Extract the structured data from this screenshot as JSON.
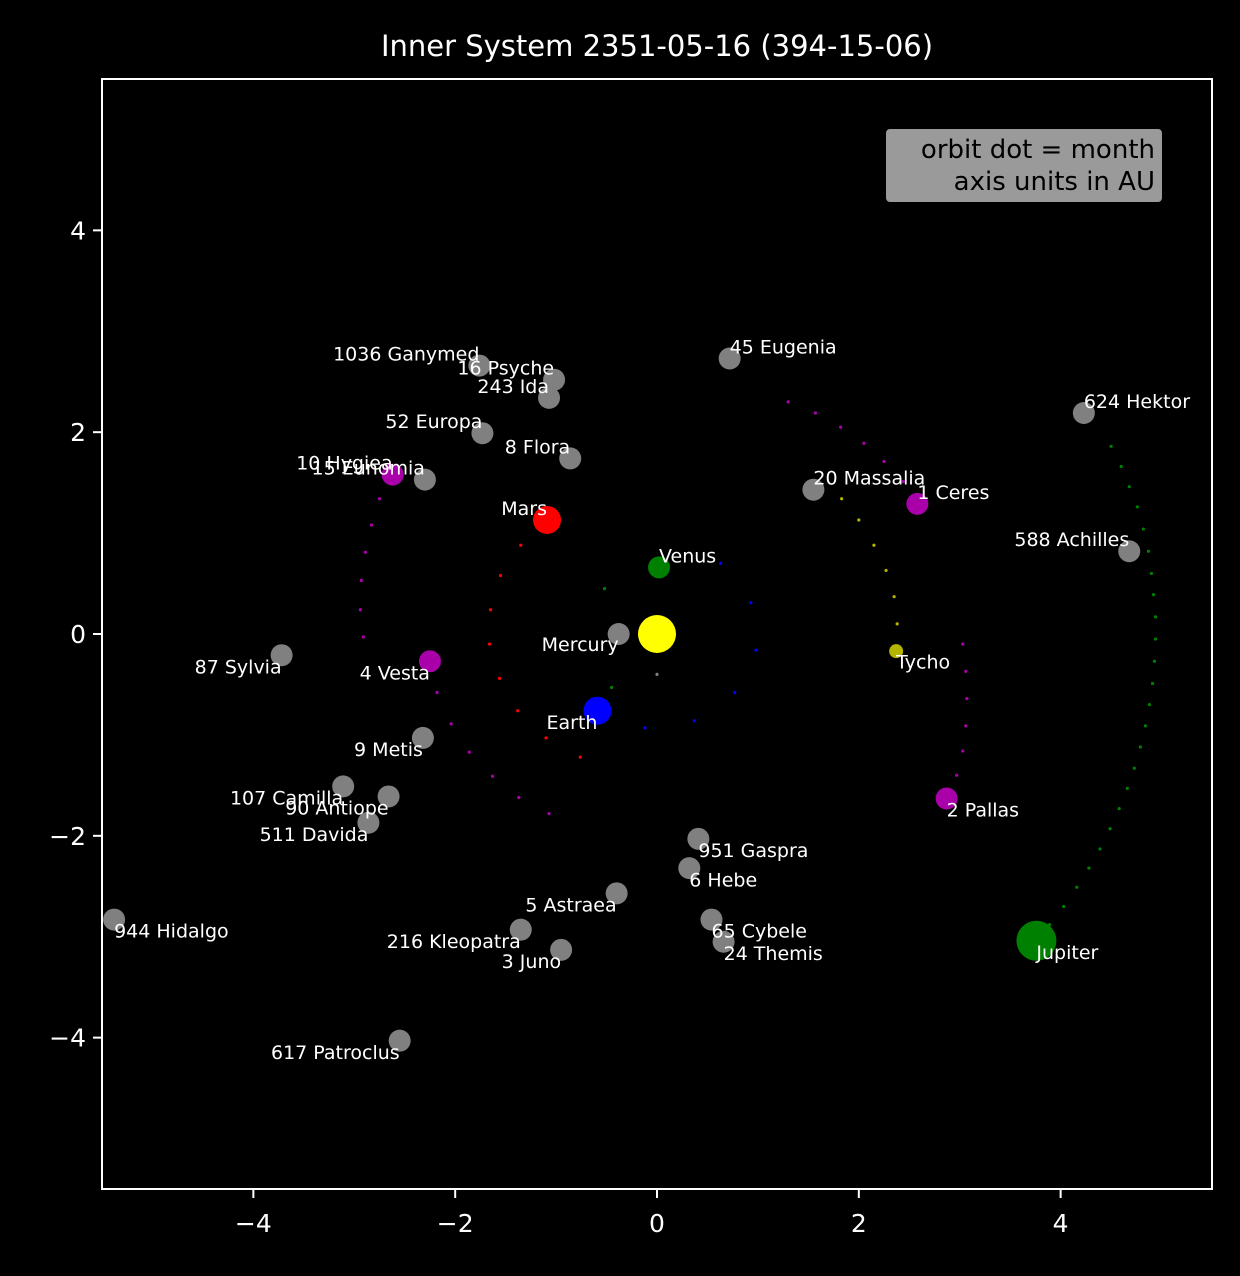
{
  "chart_data": {
    "type": "scatter",
    "title": "Inner System 2351-05-16 (394-15-06)",
    "xlabel": "",
    "ylabel": "",
    "xlim": [
      -5.5,
      5.5
    ],
    "ylim": [
      -5.5,
      5.5
    ],
    "xticks": [
      -4,
      -2,
      0,
      2,
      4
    ],
    "yticks": [
      -4,
      -2,
      0,
      2,
      4
    ],
    "xtick_labels": [
      "−4",
      "−2",
      "0",
      "2",
      "4"
    ],
    "ytick_labels": [
      "−4",
      "−2",
      "0",
      "2",
      "4"
    ],
    "grid": false,
    "legend_box": {
      "placement": "top-right",
      "lines": [
        "orbit dot = month",
        "axis units in AU"
      ]
    },
    "sun": {
      "x": 0,
      "y": 0,
      "color": "#ffff00"
    },
    "bodies": [
      {
        "name": "Mercury",
        "x": -0.38,
        "y": 0.0,
        "color": "#808080",
        "size": "medium",
        "label_anchor": "end",
        "label_dx": 0.0,
        "label_dy": -0.17
      },
      {
        "name": "Venus",
        "x": 0.02,
        "y": 0.66,
        "color": "#008000",
        "size": "medium",
        "label_anchor": "start",
        "label_dx": 0.0,
        "label_dy": 0.05
      },
      {
        "name": "Earth",
        "x": -0.59,
        "y": -0.76,
        "color": "#0000ff",
        "size": "large",
        "label_anchor": "end",
        "label_dx": 0.0,
        "label_dy": -0.18
      },
      {
        "name": "Mars",
        "x": -1.09,
        "y": 1.13,
        "color": "#ff0000",
        "size": "large",
        "label_anchor": "end",
        "label_dx": 0.0,
        "label_dy": 0.05
      },
      {
        "name": "Jupiter",
        "x": 3.76,
        "y": -3.04,
        "color": "#008000",
        "size": "xlarge",
        "label_anchor": "start",
        "label_dx": 0.0,
        "label_dy": -0.18
      },
      {
        "name": "Tycho",
        "x": 2.37,
        "y": -0.17,
        "color": "#b5b500",
        "size": "small",
        "label_anchor": "start",
        "label_dx": 0.0,
        "label_dy": -0.17
      },
      {
        "name": "1 Ceres",
        "x": 2.58,
        "y": 1.29,
        "color": "#aa00aa",
        "size": "medium",
        "label_anchor": "start",
        "label_dx": 0.0,
        "label_dy": 0.05
      },
      {
        "name": "2 Pallas",
        "x": 2.87,
        "y": -1.63,
        "color": "#aa00aa",
        "size": "medium",
        "label_anchor": "start",
        "label_dx": 0.0,
        "label_dy": -0.18
      },
      {
        "name": "4 Vesta",
        "x": -2.25,
        "y": -0.27,
        "color": "#aa00aa",
        "size": "medium",
        "label_anchor": "end",
        "label_dx": 0.0,
        "label_dy": -0.18
      },
      {
        "name": "10 Hygiea",
        "x": -2.62,
        "y": 1.58,
        "color": "#aa00aa",
        "size": "medium",
        "label_anchor": "end",
        "label_dx": 0.0,
        "label_dy": 0.05
      },
      {
        "name": "15 Eunomia",
        "x": -2.3,
        "y": 1.53,
        "color": "#808080",
        "size": "medium",
        "label_anchor": "end",
        "label_dx": 0.0,
        "label_dy": 0.05
      },
      {
        "name": "1036 Ganymed",
        "x": -1.76,
        "y": 2.66,
        "color": "#808080",
        "size": "medium",
        "label_anchor": "end",
        "label_dx": 0.0,
        "label_dy": 0.05
      },
      {
        "name": "16 Psyche",
        "x": -1.02,
        "y": 2.52,
        "color": "#808080",
        "size": "medium",
        "label_anchor": "end",
        "label_dx": 0.0,
        "label_dy": 0.05
      },
      {
        "name": "243 Ida",
        "x": -1.07,
        "y": 2.34,
        "color": "#808080",
        "size": "medium",
        "label_anchor": "end",
        "label_dx": 0.0,
        "label_dy": 0.05
      },
      {
        "name": "52 Europa",
        "x": -1.73,
        "y": 1.99,
        "color": "#808080",
        "size": "medium",
        "label_anchor": "end",
        "label_dx": 0.0,
        "label_dy": 0.05
      },
      {
        "name": "8 Flora",
        "x": -0.86,
        "y": 1.74,
        "color": "#808080",
        "size": "medium",
        "label_anchor": "end",
        "label_dx": 0.0,
        "label_dy": 0.05
      },
      {
        "name": "45 Eugenia",
        "x": 0.72,
        "y": 2.73,
        "color": "#808080",
        "size": "medium",
        "label_anchor": "start",
        "label_dx": 0.0,
        "label_dy": 0.05
      },
      {
        "name": "624 Hektor",
        "x": 4.23,
        "y": 2.19,
        "color": "#808080",
        "size": "medium",
        "label_anchor": "start",
        "label_dx": 0.0,
        "label_dy": 0.05
      },
      {
        "name": "20 Massalia",
        "x": 1.55,
        "y": 1.43,
        "color": "#808080",
        "size": "medium",
        "label_anchor": "start",
        "label_dx": 0.0,
        "label_dy": 0.05
      },
      {
        "name": "588 Achilles",
        "x": 4.68,
        "y": 0.82,
        "color": "#808080",
        "size": "medium",
        "label_anchor": "end",
        "label_dx": 0.0,
        "label_dy": 0.05
      },
      {
        "name": "87 Sylvia",
        "x": -3.72,
        "y": -0.21,
        "color": "#808080",
        "size": "medium",
        "label_anchor": "end",
        "label_dx": 0.0,
        "label_dy": -0.18
      },
      {
        "name": "9 Metis",
        "x": -2.32,
        "y": -1.03,
        "color": "#808080",
        "size": "medium",
        "label_anchor": "end",
        "label_dx": 0.0,
        "label_dy": -0.18
      },
      {
        "name": "107 Camilla",
        "x": -3.11,
        "y": -1.51,
        "color": "#808080",
        "size": "medium",
        "label_anchor": "end",
        "label_dx": 0.0,
        "label_dy": -0.18
      },
      {
        "name": "90 Antiope",
        "x": -2.66,
        "y": -1.61,
        "color": "#808080",
        "size": "medium",
        "label_anchor": "end",
        "label_dx": 0.0,
        "label_dy": -0.18
      },
      {
        "name": "511 Davida",
        "x": -2.86,
        "y": -1.87,
        "color": "#808080",
        "size": "medium",
        "label_anchor": "end",
        "label_dx": 0.0,
        "label_dy": -0.18
      },
      {
        "name": "951 Gaspra",
        "x": 0.41,
        "y": -2.03,
        "color": "#808080",
        "size": "medium",
        "label_anchor": "start",
        "label_dx": 0.0,
        "label_dy": -0.18
      },
      {
        "name": "6 Hebe",
        "x": 0.32,
        "y": -2.32,
        "color": "#808080",
        "size": "medium",
        "label_anchor": "start",
        "label_dx": 0.0,
        "label_dy": -0.18
      },
      {
        "name": "5 Astraea",
        "x": -0.4,
        "y": -2.57,
        "color": "#808080",
        "size": "medium",
        "label_anchor": "end",
        "label_dx": 0.0,
        "label_dy": -0.18
      },
      {
        "name": "65 Cybele",
        "x": 0.54,
        "y": -2.83,
        "color": "#808080",
        "size": "medium",
        "label_anchor": "start",
        "label_dx": 0.0,
        "label_dy": -0.18
      },
      {
        "name": "24 Themis",
        "x": 0.66,
        "y": -3.05,
        "color": "#808080",
        "size": "medium",
        "label_anchor": "start",
        "label_dx": 0.0,
        "label_dy": -0.18
      },
      {
        "name": "216 Kleopatra",
        "x": -1.35,
        "y": -2.93,
        "color": "#808080",
        "size": "medium",
        "label_anchor": "end",
        "label_dx": 0.0,
        "label_dy": -0.18
      },
      {
        "name": "3 Juno",
        "x": -0.95,
        "y": -3.13,
        "color": "#808080",
        "size": "medium",
        "label_anchor": "end",
        "label_dx": 0.0,
        "label_dy": -0.18
      },
      {
        "name": "944 Hidalgo",
        "x": -5.38,
        "y": -2.83,
        "color": "#808080",
        "size": "medium",
        "label_anchor": "start",
        "label_dx": 0.0,
        "label_dy": -0.18
      },
      {
        "name": "617 Patroclus",
        "x": -2.55,
        "y": -4.03,
        "color": "#808080",
        "size": "medium",
        "label_anchor": "end",
        "label_dx": 0.0,
        "label_dy": -0.18
      }
    ],
    "orbits": [
      {
        "color": "#808080",
        "points": [
          [
            0.0,
            -0.4
          ]
        ]
      },
      {
        "color": "#008000",
        "points": [
          [
            -0.52,
            0.45
          ],
          [
            -0.45,
            -0.53
          ]
        ]
      },
      {
        "color": "#0000ff",
        "points": [
          [
            0.63,
            0.7
          ],
          [
            0.93,
            0.31
          ],
          [
            0.98,
            -0.16
          ],
          [
            0.77,
            -0.58
          ],
          [
            0.37,
            -0.86
          ],
          [
            -0.12,
            -0.93
          ]
        ]
      },
      {
        "color": "#ff0000",
        "points": [
          [
            -1.35,
            0.88
          ],
          [
            -1.55,
            0.58
          ],
          [
            -1.65,
            0.24
          ],
          [
            -1.66,
            -0.1
          ],
          [
            -1.56,
            -0.44
          ],
          [
            -1.38,
            -0.76
          ],
          [
            -1.1,
            -1.03
          ],
          [
            -0.76,
            -1.22
          ]
        ]
      },
      {
        "color": "#aa00aa",
        "points": [
          [
            -2.75,
            1.34
          ],
          [
            -2.83,
            1.08
          ],
          [
            -2.89,
            0.81
          ],
          [
            -2.93,
            0.53
          ],
          [
            -2.94,
            0.24
          ],
          [
            -2.91,
            -0.03
          ]
        ]
      },
      {
        "color": "#aa00aa",
        "points": [
          [
            -2.18,
            -0.58
          ],
          [
            -2.04,
            -0.89
          ],
          [
            -1.86,
            -1.17
          ],
          [
            -1.63,
            -1.41
          ],
          [
            -1.37,
            -1.62
          ],
          [
            -1.07,
            -1.78
          ]
        ]
      },
      {
        "color": "#aa00aa",
        "points": [
          [
            1.3,
            2.3
          ],
          [
            1.57,
            2.19
          ],
          [
            1.82,
            2.05
          ],
          [
            2.05,
            1.89
          ],
          [
            2.25,
            1.71
          ],
          [
            2.44,
            1.51
          ]
        ]
      },
      {
        "color": "#aa00aa",
        "points": [
          [
            3.03,
            -0.1
          ],
          [
            3.06,
            -0.37
          ],
          [
            3.07,
            -0.64
          ],
          [
            3.06,
            -0.91
          ],
          [
            3.03,
            -1.16
          ],
          [
            2.97,
            -1.4
          ]
        ]
      },
      {
        "color": "#b5b500",
        "points": [
          [
            1.83,
            1.34
          ],
          [
            2.0,
            1.13
          ],
          [
            2.15,
            0.88
          ],
          [
            2.27,
            0.63
          ],
          [
            2.35,
            0.37
          ],
          [
            2.38,
            0.1
          ]
        ]
      },
      {
        "color": "#008000",
        "points": [
          [
            4.5,
            1.86
          ],
          [
            4.6,
            1.66
          ],
          [
            4.68,
            1.46
          ],
          [
            4.76,
            1.26
          ],
          [
            4.82,
            1.04
          ],
          [
            4.87,
            0.82
          ],
          [
            4.9,
            0.6
          ],
          [
            4.92,
            0.39
          ],
          [
            4.94,
            0.17
          ],
          [
            4.94,
            -0.05
          ],
          [
            4.93,
            -0.27
          ],
          [
            4.91,
            -0.49
          ],
          [
            4.88,
            -0.7
          ],
          [
            4.84,
            -0.91
          ],
          [
            4.79,
            -1.12
          ],
          [
            4.73,
            -1.33
          ],
          [
            4.66,
            -1.53
          ],
          [
            4.58,
            -1.73
          ],
          [
            4.49,
            -1.93
          ],
          [
            4.39,
            -2.13
          ],
          [
            4.28,
            -2.32
          ],
          [
            4.16,
            -2.51
          ],
          [
            4.03,
            -2.7
          ],
          [
            3.89,
            -2.88
          ]
        ]
      }
    ]
  }
}
